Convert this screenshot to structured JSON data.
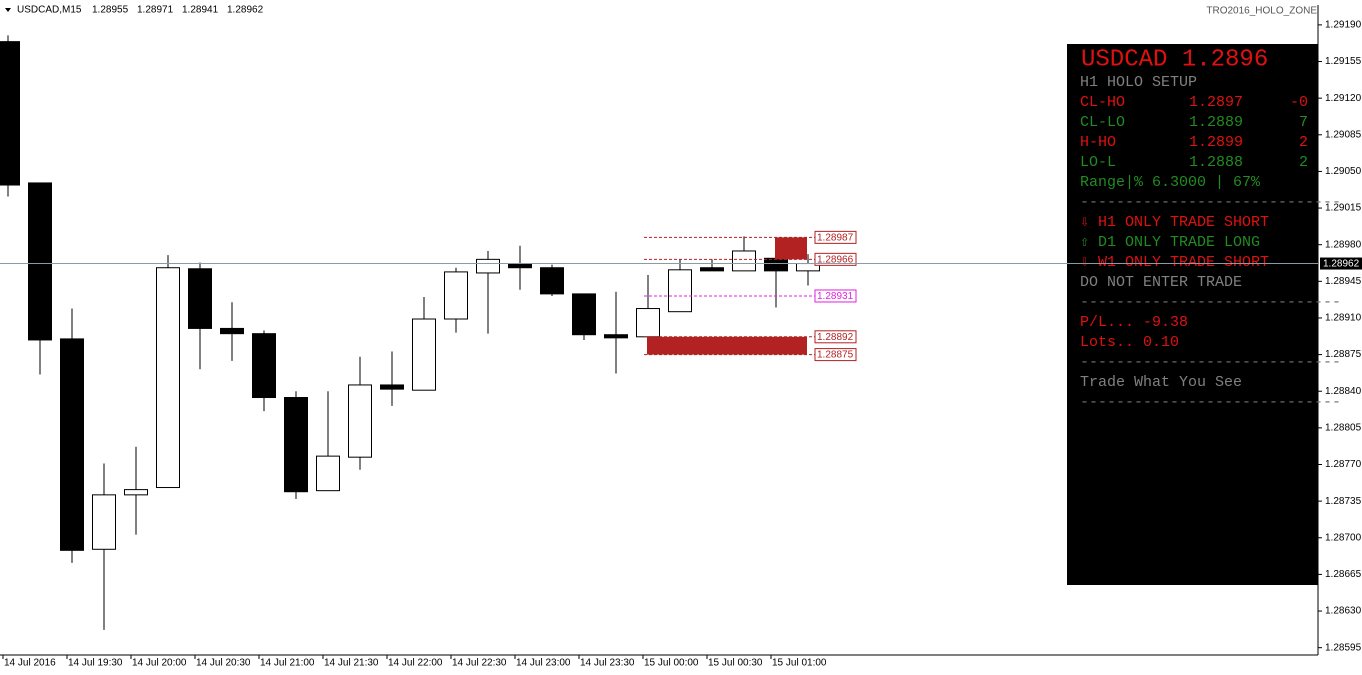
{
  "chart_data": {
    "type": "candlestick",
    "title": "USDCAD,M15",
    "header_values": [
      1.28955,
      1.28971,
      1.28941,
      1.28962
    ],
    "indicator": "TRO2016_HOLO_ZONE",
    "categories": [
      "14 Jul 2016",
      null,
      "14 Jul 19:30",
      null,
      "14 Jul 20:00",
      null,
      "14 Jul 20:30",
      null,
      "14 Jul 21:00",
      null,
      "14 Jul 21:30",
      null,
      "14 Jul 22:00",
      null,
      "14 Jul 22:30",
      null,
      "14 Jul 23:00",
      null,
      "14 Jul 23:30",
      null,
      "15 Jul 00:00",
      null,
      "15 Jul 00:30",
      null,
      "15 Jul 01:00",
      null
    ],
    "open": [
      1.29174,
      1.29039,
      1.2889,
      1.28689,
      1.28741,
      1.28748,
      1.28957,
      1.289,
      1.28895,
      1.28834,
      1.28745,
      1.28777,
      1.28846,
      1.28841,
      1.28909,
      1.28953,
      1.28962,
      1.28958,
      1.28933,
      1.28894,
      1.28892,
      1.28916,
      1.28958,
      1.28955,
      1.28967,
      1.28955
    ],
    "high": [
      1.2918,
      1.29039,
      1.28919,
      1.28771,
      1.28787,
      1.2897,
      1.28963,
      1.28925,
      1.28898,
      1.2884,
      1.2884,
      1.28873,
      1.28878,
      1.2893,
      1.28958,
      1.28974,
      1.28979,
      1.28961,
      1.28933,
      1.28935,
      1.28951,
      1.28966,
      1.28966,
      1.28988,
      1.28985,
      1.28971
    ],
    "low": [
      1.29026,
      1.28856,
      1.28676,
      1.28612,
      1.28703,
      1.28748,
      1.28861,
      1.28869,
      1.28821,
      1.28737,
      1.28745,
      1.28765,
      1.28826,
      1.28841,
      1.28896,
      1.28895,
      1.28937,
      1.28931,
      1.28889,
      1.28857,
      1.28877,
      1.28916,
      1.28955,
      1.28955,
      1.2892,
      1.28941
    ],
    "close": [
      1.29037,
      1.28889,
      1.28688,
      1.28741,
      1.28746,
      1.28958,
      1.289,
      1.28895,
      1.28834,
      1.28744,
      1.28778,
      1.28846,
      1.28842,
      1.28909,
      1.28954,
      1.28966,
      1.28958,
      1.28933,
      1.28894,
      1.28891,
      1.28919,
      1.28956,
      1.28955,
      1.28974,
      1.28955,
      1.28962
    ],
    "up_color": "#ffffff",
    "down_color": "#000000",
    "ylim": [
      1.28588,
      1.29209
    ],
    "yticks": [
      {
        "value": 1.2919,
        "label": "1.29190"
      },
      1.29155,
      {
        "value": 1.2912,
        "label": "1.29120"
      },
      1.29085,
      {
        "value": 1.2905,
        "label": "1.29050"
      },
      1.29015,
      {
        "value": 1.2898,
        "label": "1.28980"
      },
      1.28945,
      {
        "value": 1.2891,
        "label": "1.28910"
      },
      1.28875,
      {
        "value": 1.2884,
        "label": "1.28840"
      },
      1.28805,
      {
        "value": 1.2877,
        "label": "1.28770"
      },
      1.28735,
      {
        "value": 1.287,
        "label": "1.28700"
      },
      1.28665,
      {
        "value": 1.2863,
        "label": "1.28630"
      },
      1.28595
    ],
    "grid": false,
    "last_price": 1.28962,
    "last_price_color": "#8a9aa8",
    "levels": [
      {
        "value": 1.28987,
        "color": "#b22222"
      },
      {
        "value": 1.28966,
        "color": "#b22222"
      },
      {
        "value": 1.28931,
        "color": "#e020e0"
      },
      {
        "value": 1.28892,
        "color": "#b22222"
      },
      {
        "value": 1.28875,
        "color": "#b22222"
      }
    ],
    "panel": {
      "title": "USDCAD 1.2896",
      "title_color": "#e01010",
      "rows": [
        {
          "cells": [
            "H1 HOLO SETUP"
          ],
          "color": "#808080"
        },
        {
          "cells": [
            "CL-HO",
            "1.2897",
            "-0"
          ],
          "color": "#e01010"
        },
        {
          "cells": [
            "CL-LO",
            "1.2889",
            "7"
          ],
          "color": "#228b22"
        },
        {
          "cells": [
            "H-HO",
            "1.2899",
            "2"
          ],
          "color": "#e01010"
        },
        {
          "cells": [
            "LO-L",
            "1.2888",
            "2"
          ],
          "color": "#228b22"
        },
        {
          "cells": [
            "Range|% 6.3000 | 67%"
          ],
          "color": "#228b22"
        },
        {
          "cells": [
            "-----------------------------"
          ],
          "color": "#707070"
        },
        {
          "cells": [
            "⇩ H1 ONLY TRADE SHORT"
          ],
          "color": "#e01010"
        },
        {
          "cells": [
            "⇧ D1 ONLY TRADE LONG"
          ],
          "color": "#228b22"
        },
        {
          "cells": [
            "⇩ W1 ONLY TRADE SHORT"
          ],
          "color": "#e01010"
        },
        {
          "cells": [
            "DO NOT ENTER TRADE"
          ],
          "color": "#808080"
        },
        {
          "cells": [
            "-----------------------------"
          ],
          "color": "#707070"
        },
        {
          "cells": [
            "P/L... -9.38"
          ],
          "color": "#e01010"
        },
        {
          "cells": [
            "Lots.. 0.10"
          ],
          "color": "#e01010"
        },
        {
          "cells": [
            "-----------------------------"
          ],
          "color": "#707070"
        },
        {
          "cells": [
            "Trade What You See"
          ],
          "color": "#808080"
        },
        {
          "cells": [
            "-----------------------------"
          ],
          "color": "#707070"
        }
      ]
    }
  }
}
